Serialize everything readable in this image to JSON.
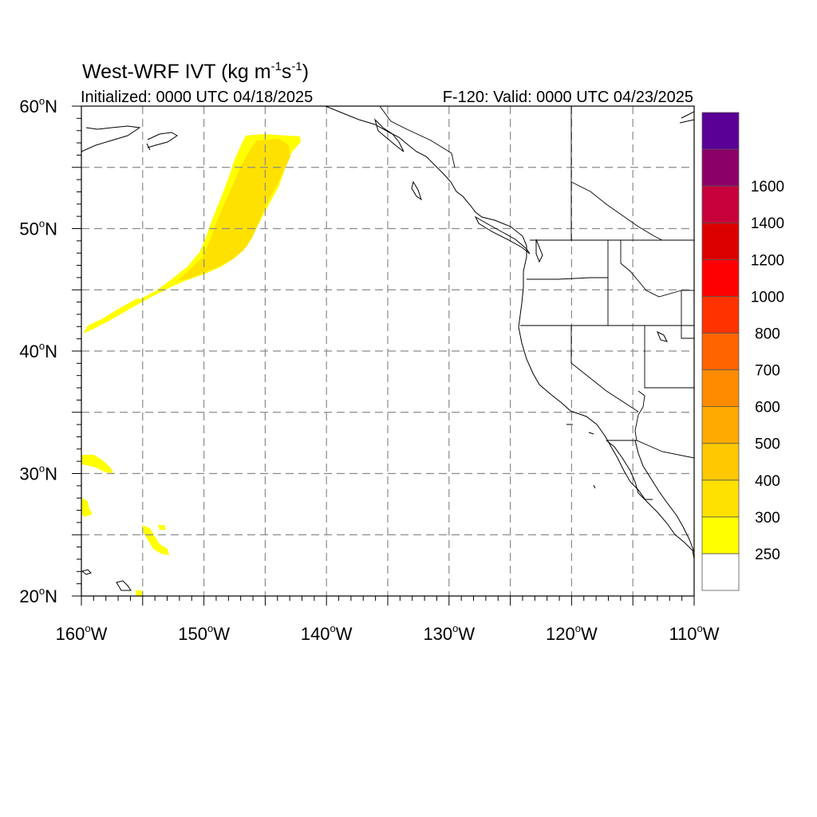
{
  "title": {
    "main": "West-WRF IVT (kg m",
    "exp1": "-1",
    "mid": "s",
    "exp2": "-1",
    "close": ")"
  },
  "subtitle_left": "Initialized: 0000 UTC 04/18/2025",
  "subtitle_right": "F-120: Valid: 0000 UTC 04/23/2025",
  "map": {
    "lon_range": [
      -160,
      -110
    ],
    "lat_range": [
      20,
      60
    ],
    "lon_labels": [
      "160",
      "150",
      "140",
      "130",
      "120",
      "110"
    ],
    "lon_suffix": "W",
    "lat_labels": [
      "60",
      "50",
      "40",
      "30",
      "20"
    ],
    "lat_suffix": "N",
    "degree_symbol": "o",
    "grid": "dashed every 5 degrees"
  },
  "colorbar": {
    "labels": [
      "250",
      "300",
      "400",
      "500",
      "600",
      "700",
      "800",
      "1000",
      "1200",
      "1400",
      "1600"
    ],
    "colors": [
      "#ffffff",
      "#ffff00",
      "#ffe100",
      "#ffc800",
      "#ffaa00",
      "#ff8c00",
      "#ff6400",
      "#ff3200",
      "#ff0000",
      "#dc0000",
      "#c8003c",
      "#8b0068",
      "#5a0096"
    ]
  },
  "ivt_color_250": "#ffff00",
  "ivt_color_300": "#ffe100"
}
